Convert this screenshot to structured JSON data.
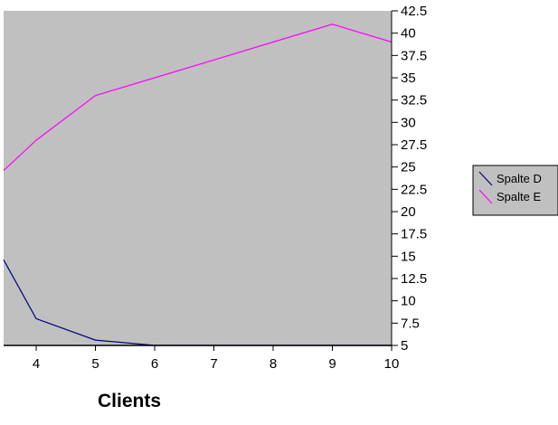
{
  "chart_data": {
    "type": "line",
    "xlabel": "Clients",
    "ylabel": "",
    "title": "",
    "xlim": [
      3.45,
      10
    ],
    "ylim": [
      5,
      42.5
    ],
    "x_ticks": [
      "4",
      "5",
      "6",
      "7",
      "8",
      "9",
      "10"
    ],
    "y_ticks": [
      "5",
      "7.5",
      "10",
      "12.5",
      "15",
      "17.5",
      "20",
      "22.5",
      "25",
      "27.5",
      "30",
      "32.5",
      "35",
      "37.5",
      "40",
      "42.5"
    ],
    "grid": false,
    "plot_background": "#c0c0c0",
    "legend_position": "right",
    "series": [
      {
        "name": "Spalte D",
        "color": "#000080",
        "points": [
          [
            3.45,
            14.6
          ],
          [
            4,
            8
          ],
          [
            5,
            5.6
          ],
          [
            6,
            5
          ],
          [
            7,
            5
          ],
          [
            8,
            5
          ],
          [
            9,
            5
          ],
          [
            10,
            5
          ]
        ]
      },
      {
        "name": "Spalte E",
        "color": "#ff00ff",
        "points": [
          [
            3.45,
            24.6
          ],
          [
            4,
            28
          ],
          [
            5,
            33
          ],
          [
            6,
            35
          ],
          [
            7,
            37
          ],
          [
            8,
            39
          ],
          [
            9,
            41
          ],
          [
            10,
            39
          ]
        ]
      }
    ]
  }
}
